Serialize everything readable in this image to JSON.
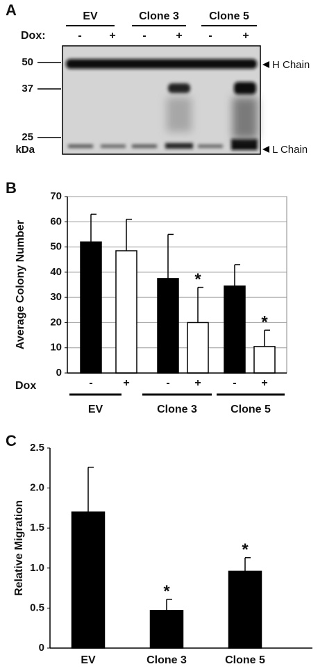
{
  "panel_a": {
    "letter": "A",
    "groups": [
      "EV",
      "Clone 3",
      "Clone 5"
    ],
    "dox_label": "Dox:",
    "dox": [
      "-",
      "+",
      "-",
      "+",
      "-",
      "+"
    ],
    "markers": [
      "50",
      "37",
      "25",
      "kDa"
    ],
    "bands": [
      "H Chain",
      "L Chain"
    ]
  },
  "chart_data": [
    {
      "type": "bar",
      "letter": "B",
      "y_label": "Average Colony Number",
      "x_label": "Dox",
      "categories": [
        "-",
        "+",
        "-",
        "+",
        "-",
        "+"
      ],
      "groups": [
        "EV",
        "Clone 3",
        "Clone 5"
      ],
      "values": [
        52,
        48.5,
        37.5,
        20,
        34.5,
        10.5
      ],
      "errors": [
        11,
        12.5,
        17.5,
        14,
        8.5,
        6.5
      ],
      "colors": [
        "#000000",
        "#ffffff",
        "#000000",
        "#ffffff",
        "#000000",
        "#ffffff"
      ],
      "annotations": [
        null,
        null,
        null,
        "*",
        null,
        "*"
      ],
      "ylim": [
        0,
        70
      ],
      "yticks": [
        0,
        10,
        20,
        30,
        40,
        50,
        60,
        70
      ],
      "grid": true
    },
    {
      "type": "bar",
      "letter": "C",
      "y_label": "Relative Migration",
      "categories": [
        "EV",
        "Clone 3",
        "Clone 5"
      ],
      "values": [
        1.7,
        0.47,
        0.96
      ],
      "errors": [
        0.56,
        0.14,
        0.17
      ],
      "colors": [
        "#000000",
        "#000000",
        "#000000"
      ],
      "annotations": [
        null,
        "*",
        "*"
      ],
      "ylim": [
        0,
        2.5
      ],
      "yticks": [
        0,
        {
          "value": 0.5,
          "label": "0.5"
        },
        {
          "value": 1,
          "label": "1.0"
        },
        {
          "value": 1.5,
          "label": "1.5"
        },
        {
          "value": 2,
          "label": "2.0"
        },
        {
          "value": 2.5,
          "label": "2.5"
        }
      ],
      "grid": false
    }
  ]
}
